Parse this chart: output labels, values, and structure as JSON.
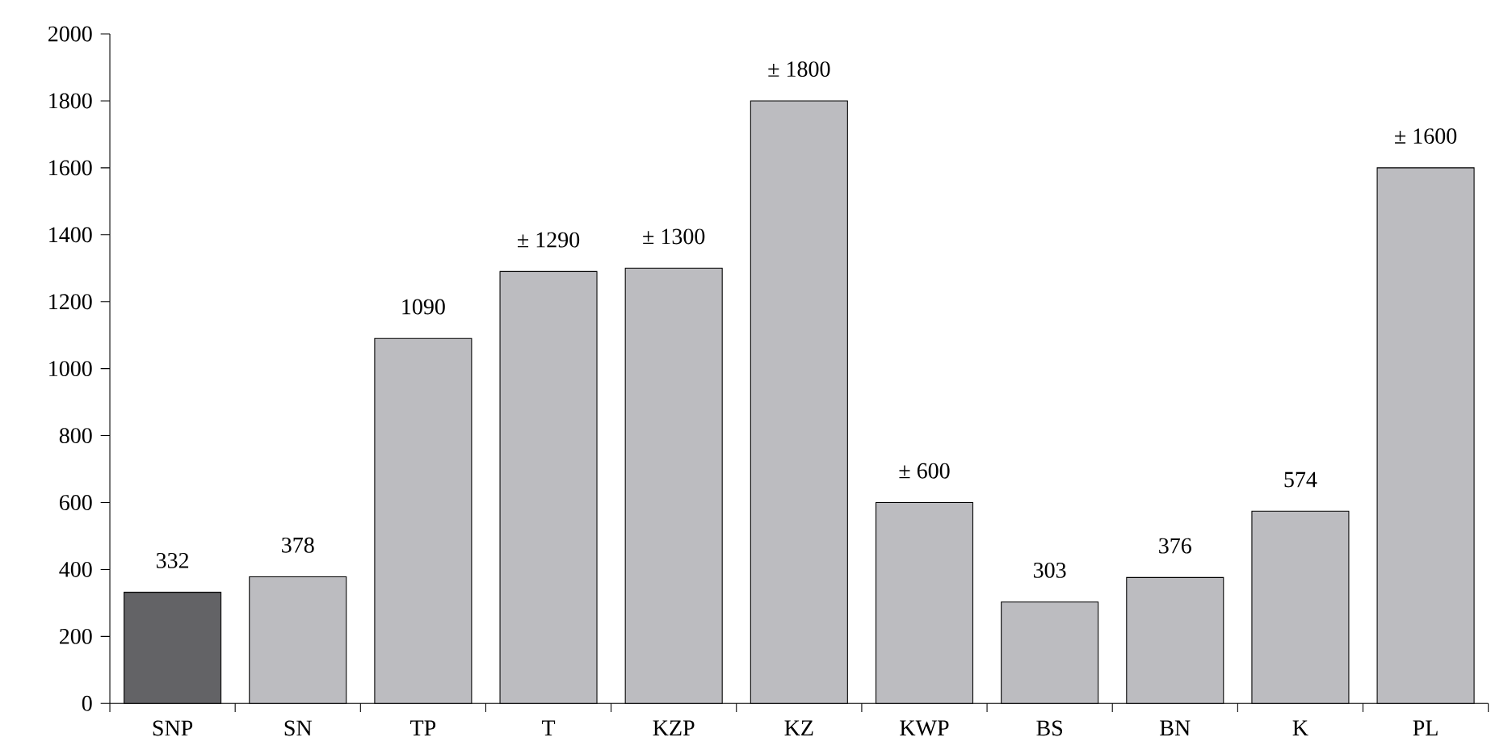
{
  "chart_data": {
    "type": "bar",
    "categories": [
      "SNP",
      "SN",
      "TP",
      "T",
      "KZP",
      "KZ",
      "KWP",
      "BS",
      "BN",
      "K",
      "PL"
    ],
    "values": [
      332,
      378,
      1090,
      1290,
      1300,
      1800,
      600,
      303,
      376,
      574,
      1600
    ],
    "colors": [
      "#636366",
      "#bcbcc0",
      "#bcbcc0",
      "#bcbcc0",
      "#bcbcc0",
      "#bcbcc0",
      "#bcbcc0",
      "#bcbcc0",
      "#bcbcc0",
      "#bcbcc0",
      "#bcbcc0"
    ],
    "value_labels": [
      "332",
      "378",
      "1090",
      "± 1290",
      "± 1300",
      "± 1800",
      "± 600",
      "303",
      "376",
      "574",
      "± 1600"
    ],
    "ylim": [
      0,
      2000
    ],
    "yticks": [
      0,
      200,
      400,
      600,
      800,
      1000,
      1200,
      1400,
      1600,
      1800,
      2000
    ],
    "grid": false
  }
}
